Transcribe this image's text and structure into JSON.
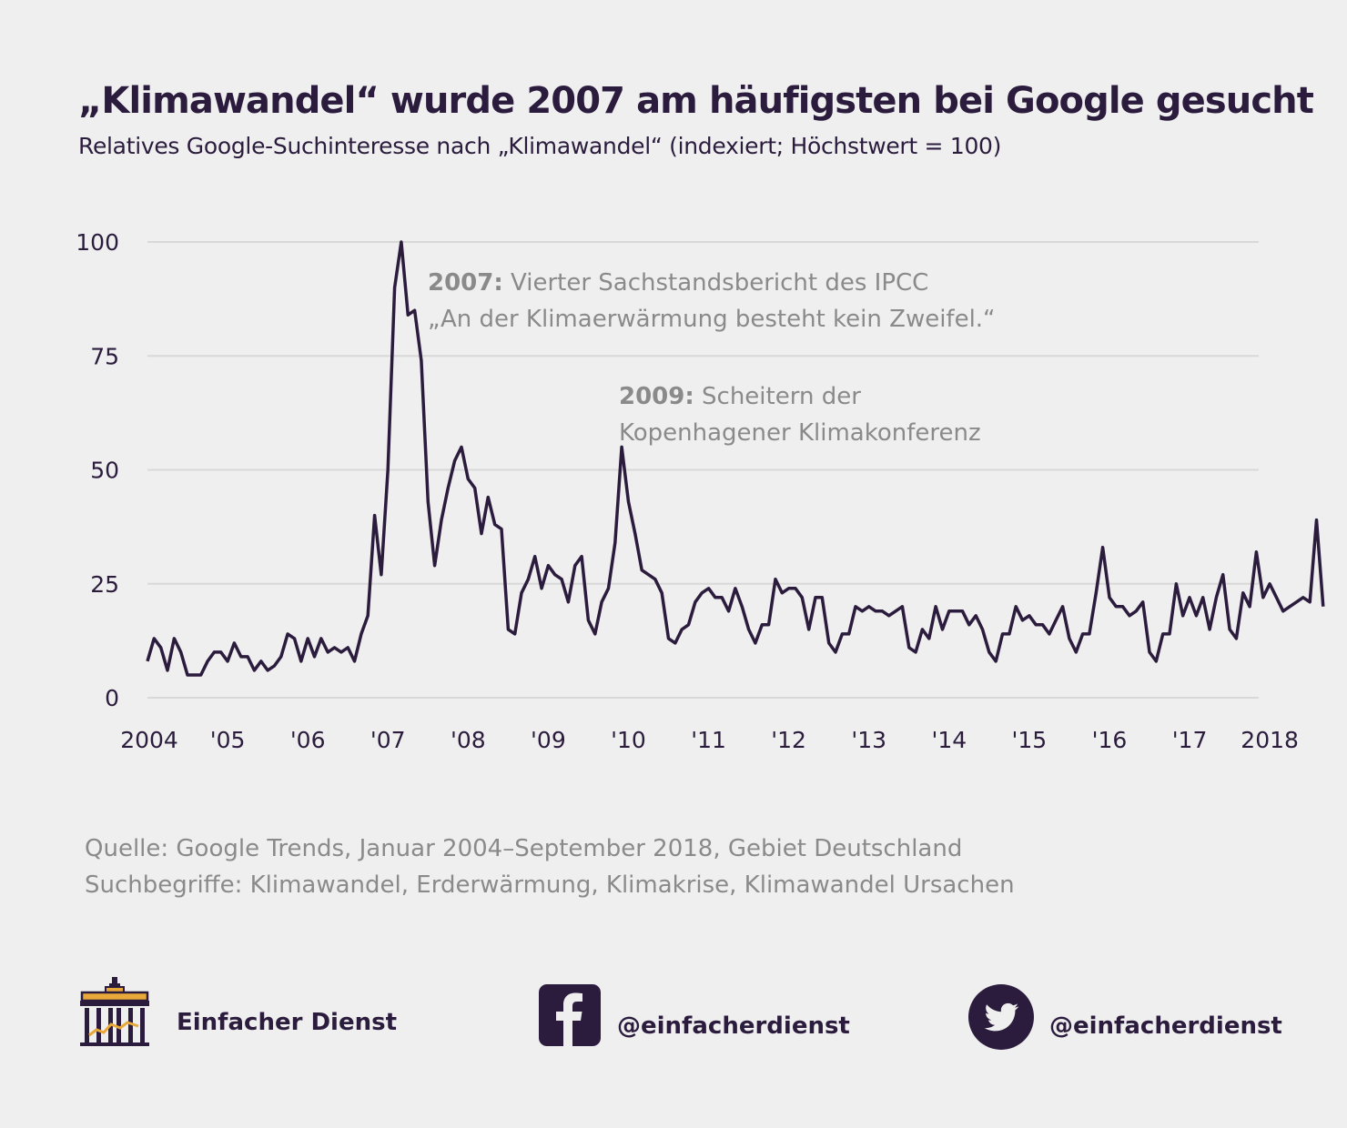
{
  "header": {
    "title": "„Klimawandel“ wurde 2007 am häufigsten bei Google gesucht",
    "subtitle": "Relatives Google-Suchinteresse nach „Klimawandel“ (indexiert; Höchstwert = 100)"
  },
  "annotations": [
    {
      "bold": "2007:",
      "line1": " Vierter Sachstandsbericht des IPCC",
      "line2": "„An der Klimaerwärmung besteht kein Zweifel.“"
    },
    {
      "bold": "2009:",
      "line1": " Scheitern der",
      "line2": "Kopenhagener Klimakonferenz"
    }
  ],
  "source": {
    "line1": "Quelle: Google Trends, Januar 2004–September 2018, Gebiet Deutschland",
    "line2": "Suchbegriffe: Klimawandel, Erderwärmung, Klimakrise, Klimawandel Ursachen"
  },
  "footer": {
    "brand": "Einfacher Dienst",
    "facebook": "@einfacherdienst",
    "twitter": "@einfacherdienst"
  },
  "colors": {
    "line": "#2b1c3d",
    "grid": "#d8d8d8",
    "text": "#2b1c3d",
    "muted": "#8a8a8a",
    "background": "#efefef"
  },
  "chart_data": {
    "type": "line",
    "title": "„Klimawandel“ wurde 2007 am häufigsten bei Google gesucht",
    "xlabel": "",
    "ylabel": "",
    "ylim": [
      0,
      100
    ],
    "yticks": [
      0,
      25,
      50,
      75,
      100
    ],
    "grid": true,
    "x_start": "2004-01",
    "x_end": "2018-09",
    "xticks": [
      {
        "label": "2004",
        "month_index": 0
      },
      {
        "label": "'05",
        "month_index": 12
      },
      {
        "label": "'06",
        "month_index": 24
      },
      {
        "label": "'07",
        "month_index": 36
      },
      {
        "label": "'08",
        "month_index": 48
      },
      {
        "label": "'09",
        "month_index": 60
      },
      {
        "label": "'10",
        "month_index": 72
      },
      {
        "label": "'11",
        "month_index": 84
      },
      {
        "label": "'12",
        "month_index": 96
      },
      {
        "label": "'13",
        "month_index": 108
      },
      {
        "label": "'14",
        "month_index": 120
      },
      {
        "label": "'15",
        "month_index": 132
      },
      {
        "label": "'16",
        "month_index": 144
      },
      {
        "label": "'17",
        "month_index": 156
      },
      {
        "label": "2018",
        "month_index": 168
      }
    ],
    "series": [
      {
        "values": [
          8,
          13,
          11,
          6,
          13,
          10,
          5,
          5,
          5,
          8,
          10,
          10,
          8,
          12,
          9,
          9,
          6,
          8,
          6,
          7,
          9,
          14,
          13,
          8,
          13,
          9,
          13,
          10,
          11,
          10,
          11,
          8,
          14,
          18,
          40,
          27,
          50,
          90,
          100,
          84,
          85,
          74,
          43,
          29,
          39,
          46,
          52,
          55,
          48,
          46,
          36,
          44,
          38,
          37,
          15,
          14,
          23,
          26,
          31,
          24,
          29,
          27,
          26,
          21,
          29,
          31,
          17,
          14,
          21,
          24,
          34,
          55,
          43,
          36,
          28,
          27,
          26,
          23,
          13,
          12,
          15,
          16,
          21,
          23,
          24,
          22,
          22,
          19,
          24,
          20,
          15,
          12,
          16,
          16,
          26,
          23,
          24,
          24,
          22,
          15,
          22,
          22,
          12,
          10,
          14,
          14,
          20,
          19,
          20,
          19,
          19,
          18,
          19,
          20,
          11,
          10,
          15,
          13,
          20,
          15,
          19,
          19,
          19,
          16,
          18,
          15,
          10,
          8,
          14,
          14,
          20,
          17,
          18,
          16,
          16,
          14,
          17,
          20,
          13,
          10,
          14,
          14,
          23,
          33,
          22,
          20,
          20,
          18,
          19,
          21,
          10,
          8,
          14,
          14,
          25,
          18,
          22,
          18,
          22,
          15,
          22,
          27,
          15,
          13,
          23,
          20,
          32,
          22,
          25,
          22,
          19,
          20,
          21,
          22,
          21,
          39,
          20
        ]
      }
    ]
  }
}
